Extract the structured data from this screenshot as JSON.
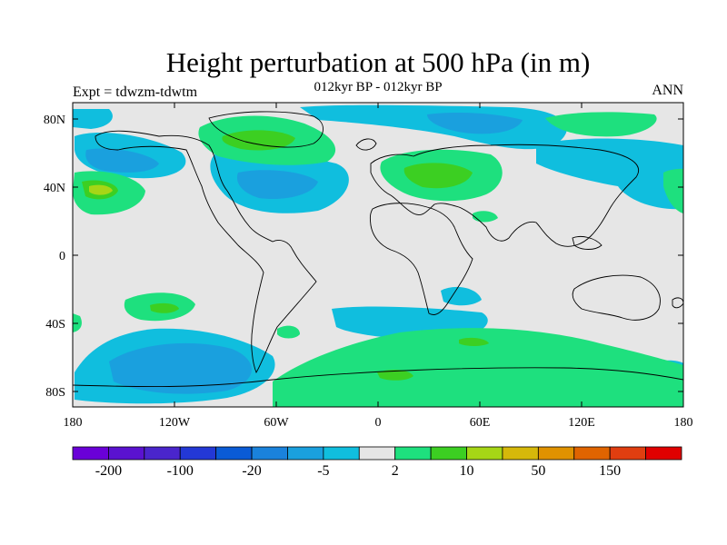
{
  "title": "Height perturbation at 500 hPa (in m)",
  "subtitle": "012kyr BP - 012kyr BP",
  "left_label": "Expt = tdwzm-tdwtm",
  "right_label": "ANN",
  "axes": {
    "x_ticks": [
      "180",
      "120W",
      "60W",
      "0",
      "60E",
      "120E",
      "180"
    ],
    "y_ticks": [
      "80N",
      "40N",
      "0",
      "40S",
      "80S"
    ]
  },
  "colorbar": {
    "colors": [
      "#6a00d8",
      "#5a12d0",
      "#4a25cc",
      "#2338d6",
      "#0a5bd6",
      "#1a82dc",
      "#1aa0de",
      "#10bede",
      "#e6e6e6",
      "#1ee07e",
      "#3ccf22",
      "#a6d616",
      "#d6b80a",
      "#e09200",
      "#e06400",
      "#e03e10",
      "#e00000"
    ],
    "labels": [
      "-200",
      "-100",
      "-20",
      "-5",
      "2",
      "10",
      "50",
      "150"
    ]
  },
  "map": {
    "background_color": "#e6e6e6",
    "level_colors": {
      "neg_light": "#10bede",
      "neg_mid": "#1aa0de",
      "pos_light": "#1ee07e",
      "pos_mid": "#3ccf22",
      "pos_high": "#a6d616"
    }
  }
}
